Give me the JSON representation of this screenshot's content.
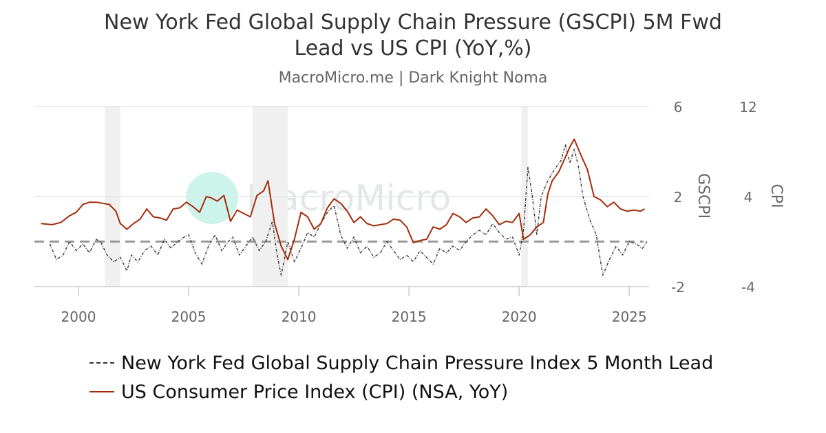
{
  "header": {
    "title_line1": "New York Fed Global Supply Chain Pressure (GSCPI) 5M Fwd",
    "title_line2": "Lead vs US CPI (YoY,%)",
    "subtitle": "MacroMicro.me | Dark Knight Noma"
  },
  "watermark": {
    "text": "MacroMicro"
  },
  "chart_data": {
    "type": "line",
    "xlim": [
      1998.0,
      2025.9
    ],
    "x_ticks": [
      "2000",
      "2005",
      "2010",
      "2015",
      "2020",
      "2025"
    ],
    "y_left": {
      "label": "GSCPI",
      "lim": [
        -2,
        6
      ],
      "ticks": [
        "6",
        "2",
        "-2"
      ]
    },
    "y_right": {
      "label": "CPI",
      "lim": [
        -4,
        12
      ],
      "ticks": [
        "12",
        "4",
        "-4"
      ]
    },
    "reference_line": {
      "axis": "left",
      "value": 0,
      "style": "dashed",
      "color": "#999999"
    },
    "shaded_regions": [
      [
        2001.2,
        2001.9
      ],
      [
        2007.9,
        2009.5
      ],
      [
        2020.1,
        2020.4
      ]
    ],
    "grid": true,
    "legend_position": "bottom",
    "series": [
      {
        "name": "New York Fed Global Supply Chain Pressure Index 5 Month Lead",
        "axis": "left",
        "color": "#333333",
        "style": "dotted",
        "x": [
          1998.7,
          1999.0,
          1999.3,
          1999.6,
          1999.9,
          2000.2,
          2000.5,
          2000.8,
          2001.0,
          2001.3,
          2001.6,
          2001.9,
          2002.2,
          2002.4,
          2002.7,
          2003.0,
          2003.3,
          2003.6,
          2003.9,
          2004.2,
          2004.5,
          2004.8,
          2005.0,
          2005.3,
          2005.6,
          2005.9,
          2006.2,
          2006.5,
          2006.8,
          2007.0,
          2007.3,
          2007.6,
          2007.9,
          2008.2,
          2008.5,
          2008.8,
          2009.0,
          2009.2,
          2009.5,
          2009.8,
          2010.1,
          2010.4,
          2010.7,
          2011.0,
          2011.3,
          2011.6,
          2011.9,
          2012.2,
          2012.5,
          2012.8,
          2013.1,
          2013.4,
          2013.7,
          2014.0,
          2014.3,
          2014.6,
          2014.9,
          2015.2,
          2015.5,
          2015.8,
          2016.1,
          2016.4,
          2016.7,
          2017.0,
          2017.3,
          2017.6,
          2017.9,
          2018.2,
          2018.5,
          2018.8,
          2019.1,
          2019.4,
          2019.7,
          2020.0,
          2020.2,
          2020.4,
          2020.6,
          2020.8,
          2021.0,
          2021.3,
          2021.6,
          2021.9,
          2022.1,
          2022.3,
          2022.5,
          2022.7,
          2022.9,
          2023.2,
          2023.5,
          2023.8,
          2024.1,
          2024.4,
          2024.7,
          2025.0,
          2025.3,
          2025.6,
          2025.8
        ],
        "values": [
          -0.1,
          -0.8,
          -0.6,
          0.0,
          -0.4,
          -0.1,
          -0.5,
          0.1,
          0.0,
          -0.6,
          -0.9,
          -0.7,
          -1.3,
          -0.6,
          -0.9,
          -0.4,
          -0.2,
          -0.6,
          0.1,
          -0.3,
          0.0,
          0.2,
          0.3,
          -0.5,
          -1.0,
          -0.2,
          0.3,
          -0.4,
          0.0,
          0.2,
          -0.6,
          -0.2,
          0.2,
          -0.4,
          0.0,
          0.9,
          -0.5,
          -1.5,
          0.0,
          -0.9,
          -0.3,
          0.4,
          0.2,
          0.8,
          1.3,
          1.6,
          0.3,
          -0.3,
          0.2,
          -0.5,
          -0.2,
          -0.7,
          -0.5,
          0.0,
          -0.4,
          -0.8,
          -0.6,
          -0.9,
          -0.4,
          -0.7,
          -1.0,
          -0.3,
          -0.5,
          -0.2,
          -0.4,
          0.0,
          0.3,
          0.5,
          0.3,
          0.8,
          0.4,
          0.1,
          0.2,
          -0.6,
          0.5,
          3.3,
          2.0,
          0.3,
          2.0,
          2.7,
          3.2,
          3.6,
          4.3,
          3.5,
          4.1,
          3.3,
          2.0,
          1.0,
          0.3,
          -1.5,
          -0.8,
          -0.2,
          -0.6,
          0.0,
          -0.1,
          -0.3,
          0.0
        ]
      },
      {
        "name": "US Consumer Price Index (CPI) (NSA, YoY)",
        "axis": "right",
        "color": "#a52a0a",
        "style": "solid",
        "x": [
          1998.3,
          1998.8,
          1999.2,
          1999.6,
          1999.9,
          2000.2,
          2000.5,
          2000.8,
          2001.1,
          2001.4,
          2001.7,
          2001.9,
          2002.2,
          2002.5,
          2002.8,
          2003.1,
          2003.4,
          2003.7,
          2004.0,
          2004.3,
          2004.6,
          2004.9,
          2005.2,
          2005.5,
          2005.8,
          2006.0,
          2006.3,
          2006.6,
          2006.9,
          2007.2,
          2007.5,
          2007.8,
          2008.1,
          2008.4,
          2008.6,
          2008.9,
          2009.2,
          2009.5,
          2009.8,
          2010.1,
          2010.4,
          2010.7,
          2011.0,
          2011.3,
          2011.6,
          2011.9,
          2012.2,
          2012.5,
          2012.8,
          2013.1,
          2013.4,
          2013.7,
          2014.0,
          2014.3,
          2014.6,
          2014.9,
          2015.2,
          2015.5,
          2015.8,
          2016.1,
          2016.4,
          2016.7,
          2017.0,
          2017.3,
          2017.6,
          2017.9,
          2018.2,
          2018.5,
          2018.8,
          2019.1,
          2019.4,
          2019.7,
          2020.0,
          2020.2,
          2020.5,
          2020.8,
          2021.1,
          2021.3,
          2021.5,
          2021.8,
          2022.1,
          2022.3,
          2022.5,
          2022.8,
          2023.1,
          2023.4,
          2023.7,
          2024.0,
          2024.3,
          2024.6,
          2024.9,
          2025.2,
          2025.5,
          2025.7
        ],
        "values": [
          1.6,
          1.5,
          1.7,
          2.3,
          2.6,
          3.3,
          3.5,
          3.5,
          3.4,
          3.3,
          2.7,
          1.6,
          1.1,
          1.6,
          2.0,
          2.9,
          2.2,
          2.1,
          1.9,
          2.9,
          3.0,
          3.5,
          3.1,
          2.6,
          4.0,
          3.9,
          3.6,
          4.1,
          1.8,
          2.8,
          2.5,
          2.2,
          4.1,
          4.5,
          5.4,
          1.6,
          -0.4,
          -1.6,
          0.2,
          2.6,
          2.2,
          1.1,
          1.6,
          3.0,
          3.8,
          3.4,
          2.7,
          1.7,
          2.2,
          1.6,
          1.4,
          1.5,
          1.6,
          2.0,
          1.9,
          1.3,
          -0.1,
          0.1,
          0.2,
          1.3,
          1.1,
          1.5,
          2.5,
          2.2,
          1.7,
          2.1,
          2.2,
          2.9,
          2.3,
          1.5,
          1.8,
          1.7,
          2.5,
          0.2,
          0.6,
          1.3,
          1.7,
          4.2,
          5.4,
          6.2,
          7.5,
          8.4,
          9.1,
          7.7,
          6.4,
          4.0,
          3.7,
          3.1,
          3.5,
          2.9,
          2.7,
          2.8,
          2.7,
          2.9
        ]
      }
    ]
  }
}
